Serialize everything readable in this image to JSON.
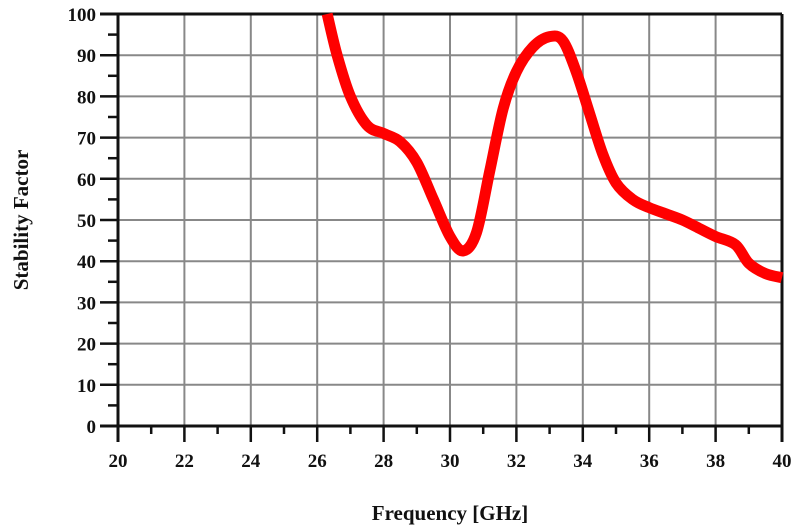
{
  "chart_data": {
    "type": "line",
    "title": "",
    "xlabel": "Frequency [GHz]",
    "ylabel": "Stability Factor",
    "xlim": [
      20,
      40
    ],
    "ylim": [
      0,
      100
    ],
    "grid": true,
    "x_ticks": [
      "20",
      "22",
      "24",
      "26",
      "28",
      "30",
      "32",
      "34",
      "36",
      "38",
      "40"
    ],
    "y_ticks": [
      "0",
      "10",
      "20",
      "30",
      "40",
      "50",
      "60",
      "70",
      "80",
      "90",
      "100"
    ],
    "series": [
      {
        "name": "Stability Factor",
        "color": "#ff0000",
        "x": [
          26.3,
          26.6,
          27.0,
          27.5,
          28.0,
          28.5,
          29.0,
          29.5,
          30.0,
          30.4,
          30.8,
          31.2,
          31.6,
          32.0,
          32.5,
          33.0,
          33.4,
          33.8,
          34.2,
          34.6,
          35.0,
          35.5,
          36.0,
          36.5,
          37.0,
          37.5,
          38.0,
          38.6,
          39.0,
          39.5,
          40.0
        ],
        "y": [
          100,
          90,
          80,
          73,
          71,
          69,
          64,
          55,
          46,
          42.5,
          47,
          62,
          77,
          86,
          92,
          94.5,
          93.5,
          86,
          76,
          66,
          59,
          55,
          53,
          51.5,
          50,
          48,
          46,
          44,
          39.5,
          37,
          36
        ]
      }
    ]
  }
}
